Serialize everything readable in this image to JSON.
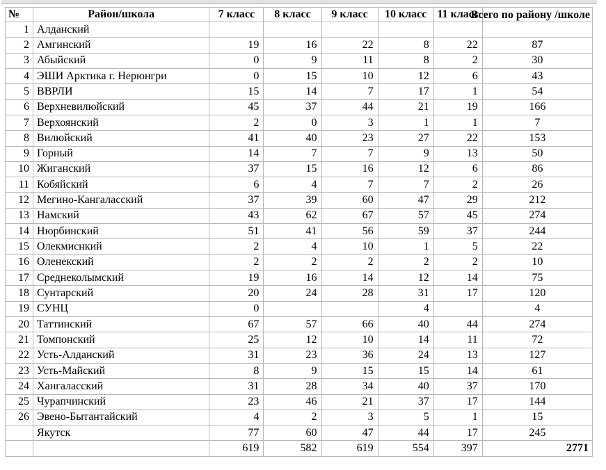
{
  "table": {
    "headers": [
      "№",
      "Район/школа",
      "7 класс",
      "8 класс",
      "9 класс",
      "10 класс",
      "11 класс",
      "Всего по району /школе"
    ],
    "rows": [
      [
        "1",
        "Алданский",
        "",
        "",
        "",
        "",
        "",
        ""
      ],
      [
        "2",
        "Амгинский",
        "19",
        "16",
        "22",
        "8",
        "22",
        "87"
      ],
      [
        "3",
        "Абыйский",
        "0",
        "9",
        "11",
        "8",
        "2",
        "30"
      ],
      [
        "4",
        "ЭШИ Арктика г. Нерюнгри",
        "0",
        "15",
        "10",
        "12",
        "6",
        "43"
      ],
      [
        "5",
        "ВВРЛИ",
        "15",
        "14",
        "7",
        "17",
        "1",
        "54"
      ],
      [
        "6",
        "Верхневилюйский",
        "45",
        "37",
        "44",
        "21",
        "19",
        "166"
      ],
      [
        "7",
        "Верхоянский",
        "2",
        "0",
        "3",
        "1",
        "1",
        "7"
      ],
      [
        "8",
        "Вилюйский",
        "41",
        "40",
        "23",
        "27",
        "22",
        "153"
      ],
      [
        "9",
        "Горный",
        "14",
        "7",
        "7",
        "9",
        "13",
        "50"
      ],
      [
        "10",
        "Жиганский",
        "37",
        "15",
        "16",
        "12",
        "6",
        "86"
      ],
      [
        "11",
        "Кобяйский",
        "6",
        "4",
        "7",
        "7",
        "2",
        "26"
      ],
      [
        "12",
        "Мегино-Кангаласский",
        "37",
        "39",
        "60",
        "47",
        "29",
        "212"
      ],
      [
        "13",
        "Намский",
        "43",
        "62",
        "67",
        "57",
        "45",
        "274"
      ],
      [
        "14",
        "Нюрбинский",
        "51",
        "41",
        "56",
        "59",
        "37",
        "244"
      ],
      [
        "15",
        "Олекмиснкий",
        "2",
        "4",
        "10",
        "1",
        "5",
        "22"
      ],
      [
        "16",
        "Оленекский",
        "2",
        "2",
        "2",
        "2",
        "2",
        "10"
      ],
      [
        "17",
        "Среднеколымский",
        "19",
        "16",
        "14",
        "12",
        "14",
        "75"
      ],
      [
        "18",
        "Сунтарский",
        "20",
        "24",
        "28",
        "31",
        "17",
        "120"
      ],
      [
        "19",
        "СУНЦ",
        "0",
        "",
        "",
        "4",
        "",
        "4"
      ],
      [
        "20",
        "Таттинский",
        "67",
        "57",
        "66",
        "40",
        "44",
        "274"
      ],
      [
        "21",
        "Томпонский",
        "25",
        "12",
        "10",
        "14",
        "11",
        "72"
      ],
      [
        "22",
        "Усть-Алданский",
        "31",
        "23",
        "36",
        "24",
        "13",
        "127"
      ],
      [
        "23",
        "Усть-Майский",
        "8",
        "9",
        "15",
        "15",
        "14",
        "61"
      ],
      [
        "24",
        "Хангаласский",
        "31",
        "28",
        "34",
        "40",
        "37",
        "170"
      ],
      [
        "25",
        "Чурапчинский",
        "23",
        "46",
        "21",
        "37",
        "17",
        "144"
      ],
      [
        "26",
        "Эвено-Бытантайский",
        "4",
        "2",
        "3",
        "5",
        "1",
        "15"
      ],
      [
        "",
        "Якутск",
        "77",
        "60",
        "47",
        "44",
        "17",
        "245"
      ],
      [
        "",
        "",
        "619",
        "582",
        "619",
        "554",
        "397",
        "2771"
      ]
    ]
  }
}
